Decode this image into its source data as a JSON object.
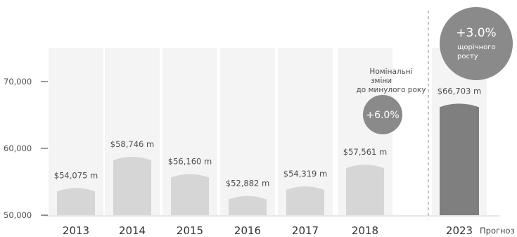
{
  "chart_data": {
    "type": "bar",
    "categories": [
      "2013",
      "2014",
      "2015",
      "2016",
      "2017",
      "2018",
      "2023"
    ],
    "values": [
      54075,
      58746,
      56160,
      52882,
      54319,
      57561,
      66703
    ],
    "value_labels": [
      "$54,075 m",
      "$58,746 m",
      "$56,160 m",
      "$52,882 m",
      "$54,319 m",
      "$57,561 m",
      "$66,703 m"
    ],
    "y_ticks": [
      50000,
      60000,
      70000
    ],
    "y_tick_labels": [
      "50,000",
      "60,000",
      "70,000"
    ],
    "ylim": [
      50000,
      76000
    ],
    "grid": false,
    "forecast_label": "Прогноз",
    "annotations": {
      "nominal_change_text": [
        "Номінальні",
        "зміни",
        "до минулого року"
      ],
      "nominal_change_value": "+6.0%",
      "annual_growth_value": "+3.0%",
      "annual_growth_text": [
        "щорічного",
        "росту"
      ]
    },
    "colors": {
      "bar": "#d6d6d6",
      "forecast_bar": "#7f7f7f",
      "bubble": "#8a8a8a",
      "column_band": "#f4f4f4",
      "text": "#4d4d4d"
    }
  }
}
